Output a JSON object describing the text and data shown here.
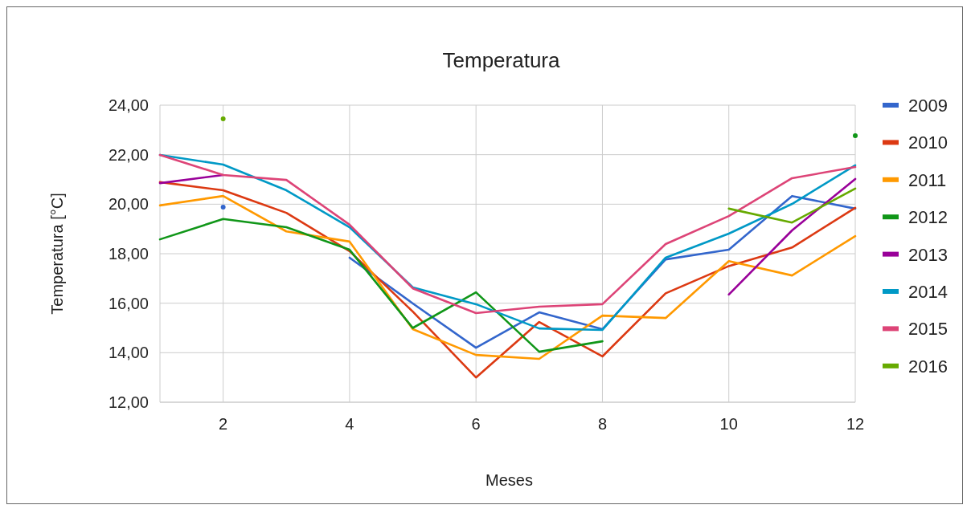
{
  "chart_data": {
    "type": "line",
    "title": "Temperatura",
    "xlabel": "Meses",
    "ylabel": "Temperatura [°C]",
    "x": [
      1,
      2,
      3,
      4,
      5,
      6,
      7,
      8,
      9,
      10,
      11,
      12
    ],
    "xlim": [
      1,
      12
    ],
    "xticks": [
      2,
      4,
      6,
      8,
      10,
      12
    ],
    "ylim": [
      12,
      24
    ],
    "yticks": [
      {
        "value": 12,
        "label": "12,00"
      },
      {
        "value": 14,
        "label": "14,00"
      },
      {
        "value": 16,
        "label": "16,00"
      },
      {
        "value": 18,
        "label": "18,00"
      },
      {
        "value": 20,
        "label": "20,00"
      },
      {
        "value": 22,
        "label": "22,00"
      },
      {
        "value": 24,
        "label": "24,00"
      }
    ],
    "grid": true,
    "legend": "right",
    "marker": "none",
    "line_style": "solid",
    "series": [
      {
        "name": "2009",
        "color": "#3366cc",
        "values": [
          null,
          19.88,
          null,
          17.84,
          15.99,
          14.2,
          15.63,
          14.95,
          17.77,
          18.16,
          20.33,
          19.82
        ]
      },
      {
        "name": "2010",
        "color": "#dc3912",
        "values": [
          20.89,
          20.56,
          19.65,
          18.1,
          15.66,
          13.0,
          15.24,
          13.85,
          16.4,
          17.5,
          18.25,
          19.85
        ]
      },
      {
        "name": "2011",
        "color": "#ff9900",
        "values": [
          19.95,
          20.33,
          18.9,
          18.49,
          14.95,
          13.91,
          13.75,
          15.5,
          15.4,
          17.7,
          17.12,
          18.71
        ]
      },
      {
        "name": "2012",
        "color": "#109618",
        "values": [
          18.58,
          19.4,
          19.07,
          18.16,
          15.0,
          16.44,
          14.04,
          14.46,
          null,
          null,
          null,
          22.77
        ]
      },
      {
        "name": "2013",
        "color": "#990099",
        "values": [
          20.85,
          21.18,
          null,
          null,
          null,
          null,
          null,
          null,
          null,
          16.35,
          18.94,
          21.02
        ]
      },
      {
        "name": "2014",
        "color": "#0099c6",
        "values": [
          21.99,
          21.6,
          20.56,
          19.07,
          16.64,
          15.96,
          14.98,
          14.92,
          17.84,
          18.81,
          20.01,
          21.57
        ]
      },
      {
        "name": "2015",
        "color": "#dd4477",
        "values": [
          21.99,
          21.18,
          20.98,
          19.17,
          16.6,
          15.6,
          15.86,
          15.96,
          18.39,
          19.52,
          21.05,
          21.5
        ]
      },
      {
        "name": "2016",
        "color": "#66aa00",
        "values": [
          null,
          23.45,
          null,
          null,
          null,
          null,
          null,
          null,
          null,
          19.82,
          19.26,
          20.63
        ]
      }
    ]
  }
}
